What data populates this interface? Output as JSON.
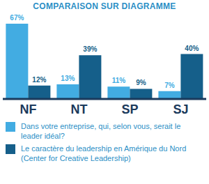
{
  "chart_data": {
    "type": "bar",
    "title": "COMPARAISON SUR DIAGRAMME",
    "categories": [
      "NF",
      "NT",
      "SP",
      "SJ"
    ],
    "series": [
      {
        "name": "Dans votre entreprise, qui, selon vous, serait le leader idéal?",
        "color": "#42ace2",
        "values": [
          67,
          13,
          11,
          7
        ],
        "value_labels": [
          "67%",
          "13%",
          "11%",
          "7%"
        ]
      },
      {
        "name": "Le caractère du leadership en Amérique du Nord (Center for Creative Leadership)",
        "color": "#155f8a",
        "values": [
          12,
          39,
          9,
          40
        ],
        "value_labels": [
          "12%",
          "39%",
          "9%",
          "40%"
        ]
      }
    ],
    "ylim": [
      0,
      67
    ],
    "data_labels": true,
    "tick_labels": "x",
    "legend": "bottom"
  }
}
